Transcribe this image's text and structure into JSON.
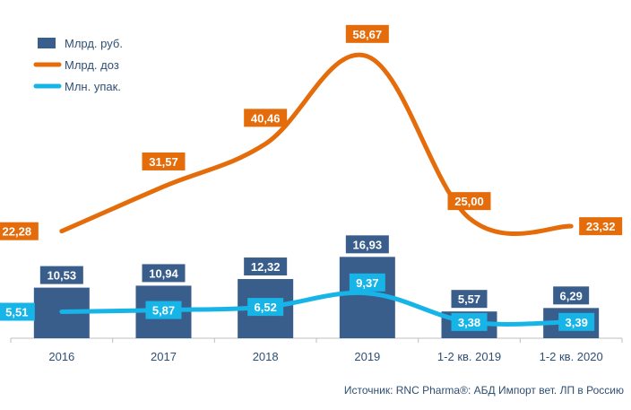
{
  "chart_data": {
    "type": "bar",
    "categories": [
      "2016",
      "2017",
      "2018",
      "2019",
      "1-2 кв. 2019",
      "1-2 кв. 2020"
    ],
    "series": [
      {
        "name": "Млрд. руб.",
        "kind": "bar",
        "color": "#3a5e8c",
        "values": [
          10.53,
          10.94,
          12.32,
          16.93,
          5.57,
          6.29
        ]
      },
      {
        "name": "Млрд. доз",
        "kind": "line",
        "color": "#e46c0a",
        "values": [
          22.28,
          31.57,
          40.46,
          58.67,
          25.0,
          23.32
        ]
      },
      {
        "name": "Млн. упак.",
        "kind": "line",
        "color": "#17b4e8",
        "values": [
          5.51,
          5.87,
          6.52,
          9.37,
          3.38,
          3.39
        ]
      }
    ],
    "value_labels": {
      "Млрд. руб.": [
        "10,53",
        "10,94",
        "12,32",
        "16,93",
        "5,57",
        "6,29"
      ],
      "Млрд. доз": [
        "22,28",
        "31,57",
        "40,46",
        "58,67",
        "25,00",
        "23,32"
      ],
      "Млн. упак.": [
        "5,51",
        "5,87",
        "6,52",
        "9,37",
        "3,38",
        "3,39"
      ]
    },
    "ylim": [
      0,
      62
    ],
    "grid": false,
    "legend_position": "top-left",
    "source": "Источник: RNC Pharma®: АБД Импорт вет. ЛП в Россию"
  }
}
